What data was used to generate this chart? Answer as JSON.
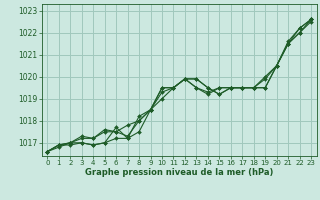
{
  "title": "Graphe pression niveau de la mer (hPa)",
  "background_color": "#cce8e0",
  "grid_color": "#a0c8bc",
  "line_color": "#1e5c28",
  "ylim": [
    1016.4,
    1023.3
  ],
  "xlim": [
    -0.5,
    23.5
  ],
  "yticks": [
    1017,
    1018,
    1019,
    1020,
    1021,
    1022,
    1023
  ],
  "xticks": [
    0,
    1,
    2,
    3,
    4,
    5,
    6,
    7,
    8,
    9,
    10,
    11,
    12,
    13,
    14,
    15,
    16,
    17,
    18,
    19,
    20,
    21,
    22,
    23
  ],
  "series": [
    [
      1016.6,
      1016.9,
      1016.9,
      1017.0,
      1016.9,
      1017.0,
      1017.2,
      1017.2,
      1018.2,
      1018.5,
      1019.5,
      1019.5,
      1019.9,
      1019.9,
      1019.5,
      1019.2,
      1019.5,
      1019.5,
      1019.5,
      1019.9,
      1020.5,
      1021.5,
      1022.2,
      1022.6
    ],
    [
      1016.6,
      1016.9,
      1017.0,
      1017.0,
      1016.9,
      1017.0,
      1017.7,
      1017.2,
      1017.5,
      1018.5,
      1019.3,
      1019.5,
      1019.9,
      1019.9,
      1019.5,
      1019.2,
      1019.5,
      1019.5,
      1019.5,
      1019.5,
      1020.5,
      1021.6,
      1022.2,
      1022.6
    ],
    [
      1016.6,
      1016.8,
      1017.0,
      1017.2,
      1017.2,
      1017.6,
      1017.5,
      1017.3,
      1018.0,
      1018.5,
      1019.0,
      1019.5,
      1019.9,
      1019.5,
      1019.3,
      1019.5,
      1019.5,
      1019.5,
      1019.5,
      1019.5,
      1020.5,
      1021.5,
      1022.0,
      1022.5
    ],
    [
      1016.6,
      1016.9,
      1017.0,
      1017.3,
      1017.2,
      1017.5,
      1017.5,
      1017.8,
      1018.0,
      1018.5,
      1019.5,
      1019.5,
      1019.9,
      1019.5,
      1019.2,
      1019.5,
      1019.5,
      1019.5,
      1019.5,
      1020.0,
      1020.5,
      1021.5,
      1022.0,
      1022.6
    ]
  ]
}
